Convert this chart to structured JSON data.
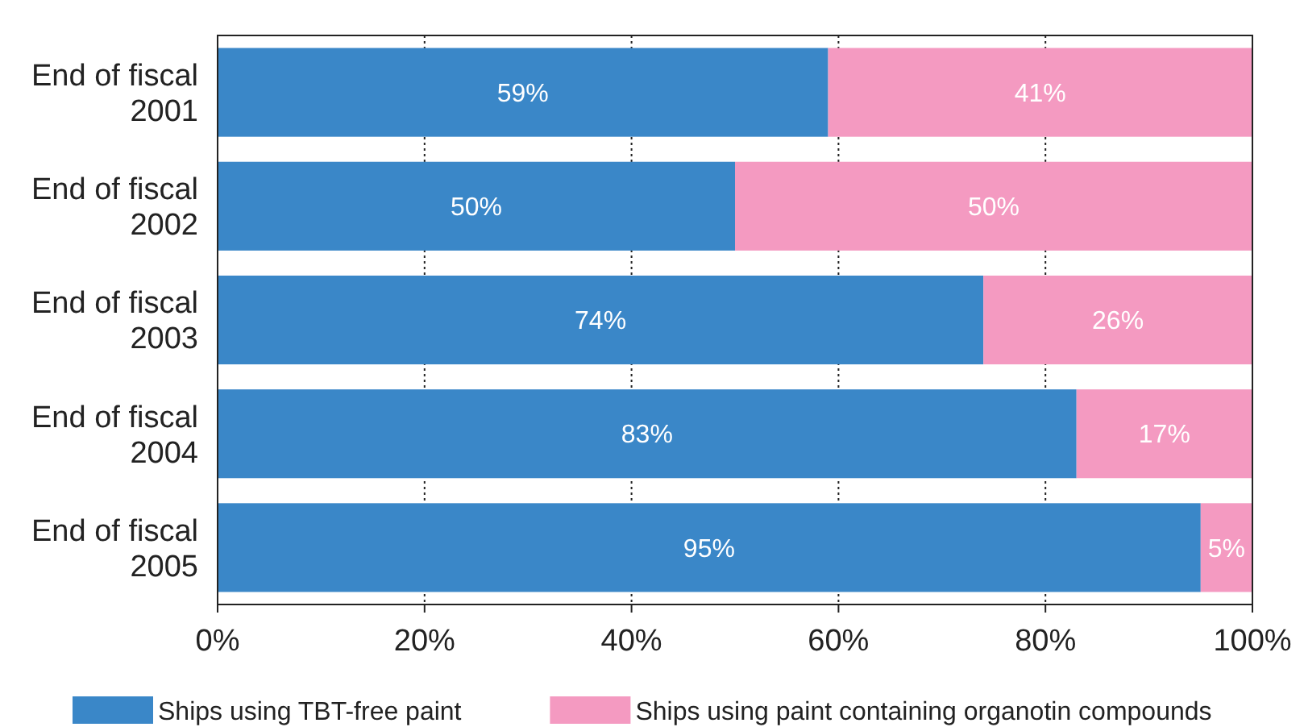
{
  "chart_data": {
    "type": "bar",
    "orientation": "horizontal",
    "stacked": true,
    "categories": [
      "End of fiscal 2001",
      "End of fiscal 2002",
      "End of fiscal 2003",
      "End of fiscal 2004",
      "End of fiscal 2005"
    ],
    "series": [
      {
        "name": "Ships using TBT-free paint",
        "color": "#3a87c8",
        "values": [
          59,
          50,
          74,
          83,
          95
        ],
        "value_labels": [
          "59%",
          "50%",
          "74%",
          "83%",
          "95%"
        ]
      },
      {
        "name": "Ships using paint containing organotin compounds",
        "color": "#f49ac1",
        "values": [
          41,
          50,
          26,
          17,
          5
        ],
        "value_labels": [
          "41%",
          "50%",
          "26%",
          "17%",
          "5%"
        ]
      }
    ],
    "xlim": [
      0,
      100
    ],
    "xticks": [
      {
        "value": 0,
        "label": "0%"
      },
      {
        "value": 20,
        "label": "20%"
      },
      {
        "value": 40,
        "label": "40%"
      },
      {
        "value": 60,
        "label": "60%"
      },
      {
        "value": 80,
        "label": "80%"
      },
      {
        "value": 100,
        "label": "100%"
      }
    ],
    "grid": "x",
    "legend": "bottom"
  }
}
